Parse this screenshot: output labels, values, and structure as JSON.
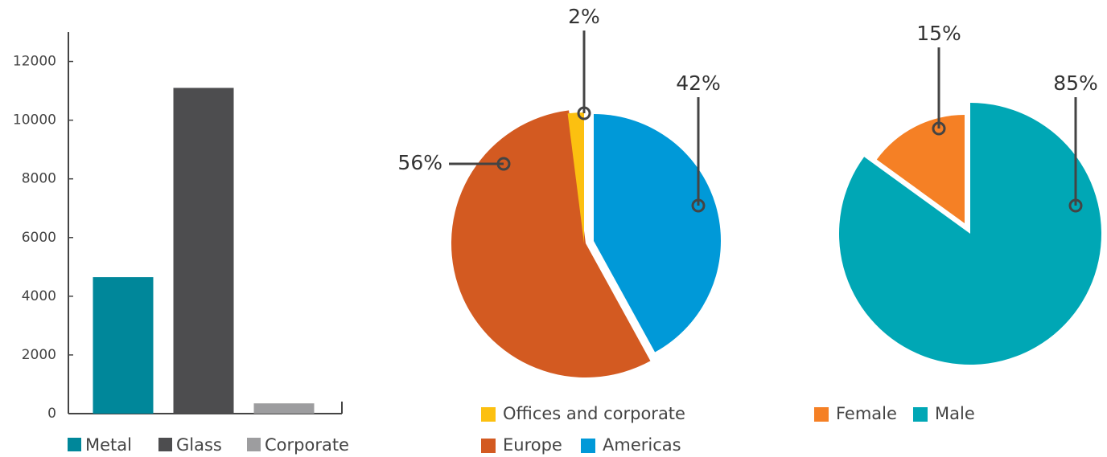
{
  "chart_data": [
    {
      "type": "bar",
      "categories": [
        "Metal",
        "Glass",
        "Corporate"
      ],
      "values": [
        4650,
        11100,
        350
      ],
      "colors": [
        "#00879a",
        "#4d4d4f",
        "#9d9d9f"
      ],
      "ylim": [
        0,
        13000
      ],
      "yticks": [
        0,
        2000,
        4000,
        6000,
        8000,
        10000,
        12000
      ]
    },
    {
      "type": "pie",
      "categories": [
        "Americas",
        "Europe",
        "Offices and corporate"
      ],
      "values": [
        42,
        56,
        2
      ],
      "value_labels": [
        "42%",
        "56%",
        "2%"
      ],
      "colors": [
        "#0099d8",
        "#d35a21",
        "#fcc010"
      ]
    },
    {
      "type": "pie",
      "categories": [
        "Male",
        "Female"
      ],
      "values": [
        85,
        15
      ],
      "value_labels": [
        "85%",
        "15%"
      ],
      "colors": [
        "#00a7b5",
        "#f58025"
      ]
    }
  ]
}
